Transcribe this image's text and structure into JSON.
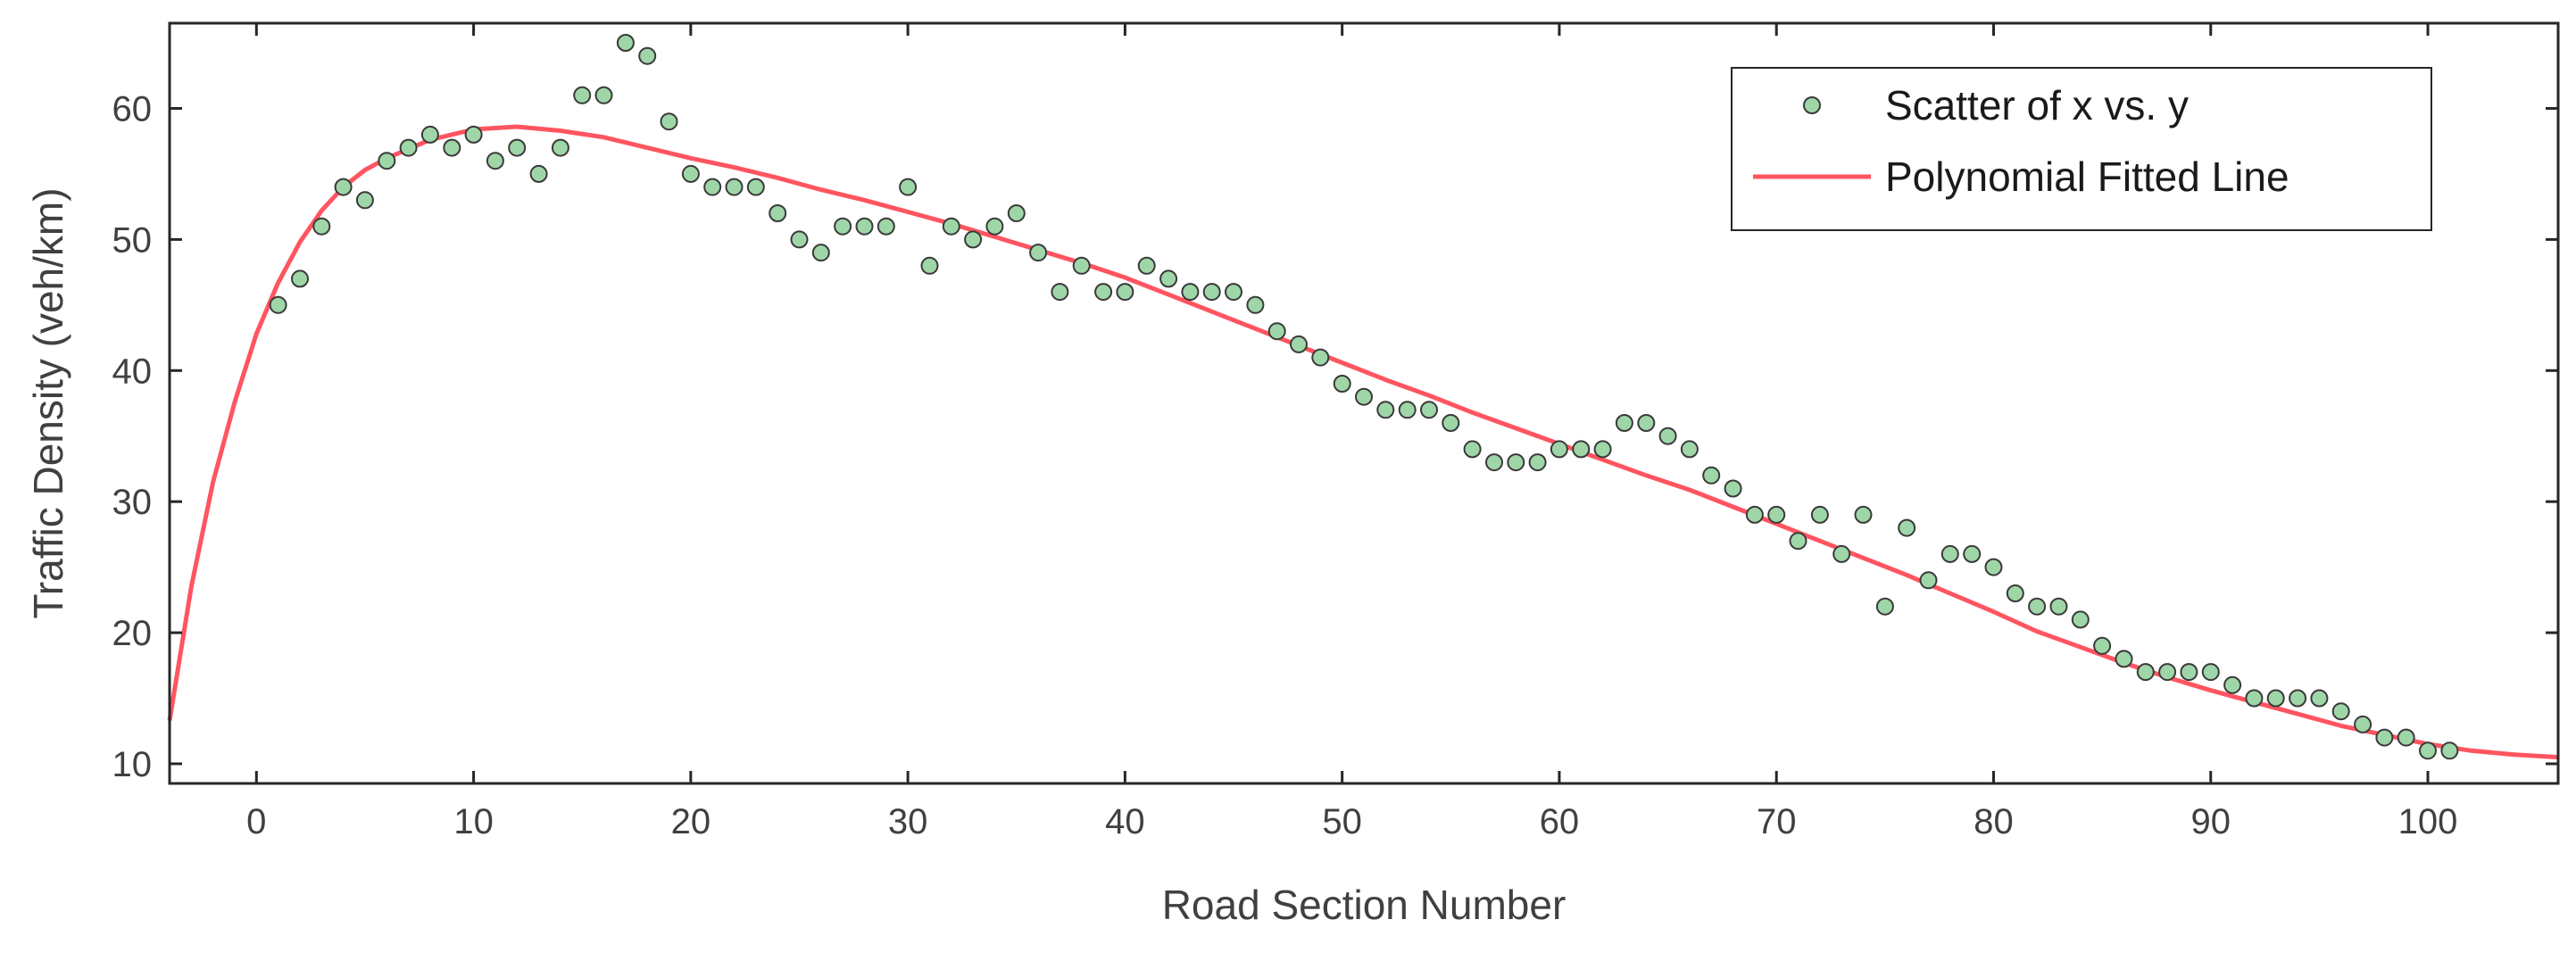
{
  "chart_data": {
    "type": "scatter",
    "xlabel": "Road Section Number",
    "ylabel": "Traffic Density (veh/km)",
    "xlim": [
      -4,
      106
    ],
    "ylim": [
      8.5,
      66.5
    ],
    "x_ticks": [
      0,
      10,
      20,
      30,
      40,
      50,
      60,
      70,
      80,
      90,
      100
    ],
    "y_ticks": [
      10,
      20,
      30,
      40,
      50,
      60
    ],
    "grid": false,
    "legend_placement": "top-right",
    "series": [
      {
        "name": "Scatter of x vs. y",
        "kind": "scatter",
        "marker_fill": "#9fd6a8",
        "marker_edge": "#3a3a3a",
        "x": [
          1,
          2,
          3,
          4,
          5,
          6,
          7,
          8,
          9,
          10,
          11,
          12,
          13,
          14,
          15,
          16,
          17,
          18,
          19,
          20,
          21,
          22,
          23,
          24,
          25,
          26,
          27,
          28,
          29,
          30,
          31,
          32,
          33,
          34,
          35,
          36,
          37,
          38,
          39,
          40,
          41,
          42,
          43,
          44,
          45,
          46,
          47,
          48,
          49,
          50,
          51,
          52,
          53,
          54,
          55,
          56,
          57,
          58,
          59,
          60,
          61,
          62,
          63,
          64,
          65,
          66,
          67,
          68,
          69,
          70,
          71,
          72,
          73,
          74,
          75,
          76,
          77,
          78,
          79,
          80,
          81,
          82,
          83,
          84,
          85,
          86,
          87,
          88,
          89,
          90,
          91,
          92,
          93,
          94,
          95,
          96,
          97,
          98,
          99,
          100,
          101
        ],
        "y": [
          45,
          47,
          51,
          54,
          53,
          56,
          57,
          58,
          57,
          58,
          56,
          57,
          55,
          57,
          61,
          61,
          65,
          64,
          59,
          55,
          54,
          54,
          54,
          52,
          50,
          49,
          51,
          51,
          51,
          54,
          48,
          51,
          50,
          51,
          52,
          49,
          46,
          48,
          46,
          46,
          48,
          47,
          46,
          46,
          46,
          45,
          43,
          42,
          41,
          39,
          38,
          37,
          37,
          37,
          36,
          34,
          33,
          33,
          33,
          34,
          34,
          34,
          36,
          36,
          35,
          34,
          32,
          31,
          29,
          29,
          27,
          29,
          26,
          29,
          22,
          28,
          24,
          26,
          26,
          25,
          23,
          22,
          22,
          21,
          19,
          18,
          17,
          17,
          17,
          17,
          16,
          15,
          15,
          15,
          15,
          14,
          13,
          12,
          12,
          11,
          11
        ]
      },
      {
        "name": "Polynomial Fitted Line",
        "kind": "line",
        "color": "#ff5560",
        "x": [
          -4,
          -3,
          -2,
          -1,
          0,
          1,
          2,
          3,
          4,
          5,
          6,
          8,
          10,
          12,
          14,
          16,
          18,
          20,
          22,
          24,
          26,
          28,
          30,
          32,
          34,
          36,
          38,
          40,
          42,
          44,
          46,
          48,
          50,
          52,
          54,
          56,
          58,
          60,
          62,
          64,
          66,
          68,
          70,
          72,
          74,
          76,
          78,
          80,
          82,
          84,
          86,
          88,
          90,
          92,
          94,
          96,
          98,
          100,
          102,
          104,
          106
        ],
        "y": [
          13.3,
          23.5,
          31.5,
          37.6,
          42.8,
          46.7,
          49.8,
          52.2,
          54,
          55.3,
          56.2,
          57.6,
          58.4,
          58.6,
          58.3,
          57.8,
          57,
          56.2,
          55.5,
          54.7,
          53.8,
          53,
          52.1,
          51.2,
          50.2,
          49.2,
          48.2,
          47.1,
          45.8,
          44.5,
          43.2,
          41.9,
          40.6,
          39.3,
          38.1,
          36.8,
          35.6,
          34.4,
          33.2,
          32,
          30.9,
          29.6,
          28.3,
          27,
          25.7,
          24.4,
          23,
          21.6,
          20.1,
          18.9,
          17.7,
          16.6,
          15.6,
          14.7,
          13.8,
          12.9,
          12.2,
          11.5,
          11,
          10.7,
          10.5
        ]
      }
    ]
  }
}
